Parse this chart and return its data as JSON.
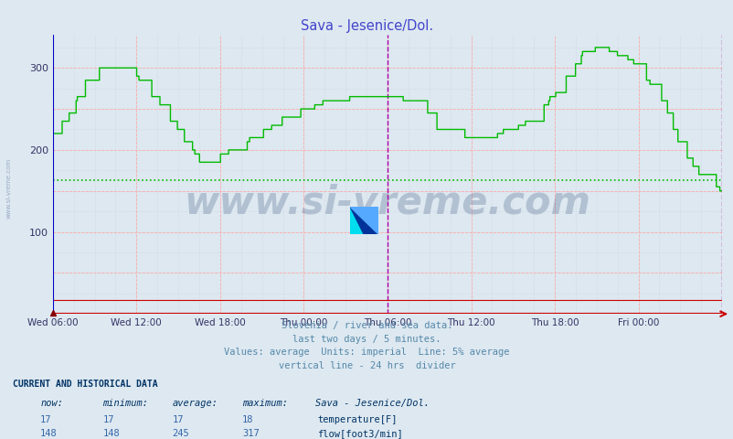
{
  "title": "Sava - Jesenice/Dol.",
  "title_color": "#4444cc",
  "bg_color": "#dde8f0",
  "plot_bg_color": "#dde8f0",
  "grid_color_major": "#ffaaaa",
  "grid_color_minor": "#ccccdd",
  "x_tick_labels": [
    "Wed 06:00",
    "Wed 12:00",
    "Wed 18:00",
    "Thu 00:00",
    "Thu 06:00",
    "Thu 12:00",
    "Thu 18:00",
    "Fri 00:00"
  ],
  "y_ticks": [
    100,
    200,
    300
  ],
  "ylim": [
    0,
    340
  ],
  "flow_color": "#00bb00",
  "temp_color": "#cc0000",
  "average_line_color": "#00bb00",
  "average_line_value": 163,
  "vertical_line_color": "#aa00aa",
  "subtitle_lines": [
    "Slovenia / river and sea data.",
    "last two days / 5 minutes.",
    "Values: average  Units: imperial  Line: 5% average",
    "vertical line - 24 hrs  divider"
  ],
  "subtitle_color": "#5588aa",
  "table_header_color": "#003366",
  "table_data_color": "#3366aa",
  "watermark_text": "www.si-vreme.com",
  "watermark_color": "#1a3a6a",
  "watermark_alpha": 0.22,
  "now_flow": 148,
  "min_flow": 148,
  "avg_flow": 245,
  "max_flow": 317,
  "now_temp": 17,
  "min_temp": 17,
  "avg_temp": 17,
  "max_temp": 18,
  "num_points": 576,
  "axis_color": "#0000cc",
  "bottom_line_color": "#cc0000",
  "left_vertical_color": "#0000cc"
}
